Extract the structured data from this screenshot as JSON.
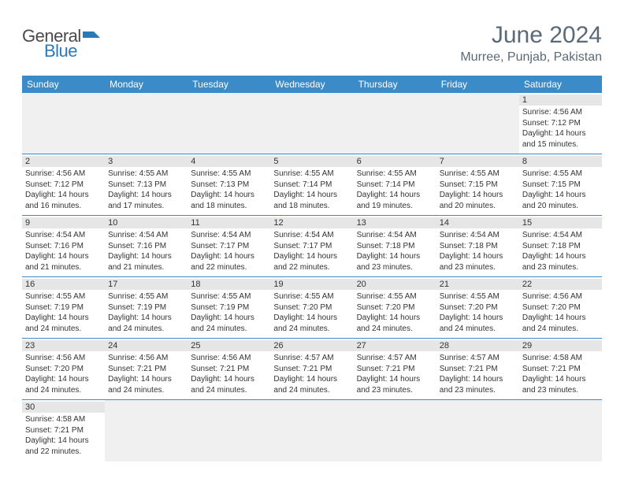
{
  "brand": {
    "text_general": "General",
    "text_blue": "Blue",
    "icon_color": "#2a7ab8"
  },
  "title": {
    "month": "June 2024",
    "location": "Murree, Punjab, Pakistan"
  },
  "colors": {
    "header_bg": "#3b8bc8",
    "header_text": "#ffffff",
    "daynum_bg": "#e6e6e6",
    "empty_bg": "#f0f0f0",
    "divider": "#3b8bc8",
    "title_text": "#5a6a78",
    "body_text": "#333333"
  },
  "weekdays": [
    "Sunday",
    "Monday",
    "Tuesday",
    "Wednesday",
    "Thursday",
    "Friday",
    "Saturday"
  ],
  "weeks": [
    [
      null,
      null,
      null,
      null,
      null,
      null,
      {
        "n": "1",
        "sr": "4:56 AM",
        "ss": "7:12 PM",
        "dl": "14 hours and 15 minutes."
      }
    ],
    [
      {
        "n": "2",
        "sr": "4:56 AM",
        "ss": "7:12 PM",
        "dl": "14 hours and 16 minutes."
      },
      {
        "n": "3",
        "sr": "4:55 AM",
        "ss": "7:13 PM",
        "dl": "14 hours and 17 minutes."
      },
      {
        "n": "4",
        "sr": "4:55 AM",
        "ss": "7:13 PM",
        "dl": "14 hours and 18 minutes."
      },
      {
        "n": "5",
        "sr": "4:55 AM",
        "ss": "7:14 PM",
        "dl": "14 hours and 18 minutes."
      },
      {
        "n": "6",
        "sr": "4:55 AM",
        "ss": "7:14 PM",
        "dl": "14 hours and 19 minutes."
      },
      {
        "n": "7",
        "sr": "4:55 AM",
        "ss": "7:15 PM",
        "dl": "14 hours and 20 minutes."
      },
      {
        "n": "8",
        "sr": "4:55 AM",
        "ss": "7:15 PM",
        "dl": "14 hours and 20 minutes."
      }
    ],
    [
      {
        "n": "9",
        "sr": "4:54 AM",
        "ss": "7:16 PM",
        "dl": "14 hours and 21 minutes."
      },
      {
        "n": "10",
        "sr": "4:54 AM",
        "ss": "7:16 PM",
        "dl": "14 hours and 21 minutes."
      },
      {
        "n": "11",
        "sr": "4:54 AM",
        "ss": "7:17 PM",
        "dl": "14 hours and 22 minutes."
      },
      {
        "n": "12",
        "sr": "4:54 AM",
        "ss": "7:17 PM",
        "dl": "14 hours and 22 minutes."
      },
      {
        "n": "13",
        "sr": "4:54 AM",
        "ss": "7:18 PM",
        "dl": "14 hours and 23 minutes."
      },
      {
        "n": "14",
        "sr": "4:54 AM",
        "ss": "7:18 PM",
        "dl": "14 hours and 23 minutes."
      },
      {
        "n": "15",
        "sr": "4:54 AM",
        "ss": "7:18 PM",
        "dl": "14 hours and 23 minutes."
      }
    ],
    [
      {
        "n": "16",
        "sr": "4:55 AM",
        "ss": "7:19 PM",
        "dl": "14 hours and 24 minutes."
      },
      {
        "n": "17",
        "sr": "4:55 AM",
        "ss": "7:19 PM",
        "dl": "14 hours and 24 minutes."
      },
      {
        "n": "18",
        "sr": "4:55 AM",
        "ss": "7:19 PM",
        "dl": "14 hours and 24 minutes."
      },
      {
        "n": "19",
        "sr": "4:55 AM",
        "ss": "7:20 PM",
        "dl": "14 hours and 24 minutes."
      },
      {
        "n": "20",
        "sr": "4:55 AM",
        "ss": "7:20 PM",
        "dl": "14 hours and 24 minutes."
      },
      {
        "n": "21",
        "sr": "4:55 AM",
        "ss": "7:20 PM",
        "dl": "14 hours and 24 minutes."
      },
      {
        "n": "22",
        "sr": "4:56 AM",
        "ss": "7:20 PM",
        "dl": "14 hours and 24 minutes."
      }
    ],
    [
      {
        "n": "23",
        "sr": "4:56 AM",
        "ss": "7:20 PM",
        "dl": "14 hours and 24 minutes."
      },
      {
        "n": "24",
        "sr": "4:56 AM",
        "ss": "7:21 PM",
        "dl": "14 hours and 24 minutes."
      },
      {
        "n": "25",
        "sr": "4:56 AM",
        "ss": "7:21 PM",
        "dl": "14 hours and 24 minutes."
      },
      {
        "n": "26",
        "sr": "4:57 AM",
        "ss": "7:21 PM",
        "dl": "14 hours and 24 minutes."
      },
      {
        "n": "27",
        "sr": "4:57 AM",
        "ss": "7:21 PM",
        "dl": "14 hours and 23 minutes."
      },
      {
        "n": "28",
        "sr": "4:57 AM",
        "ss": "7:21 PM",
        "dl": "14 hours and 23 minutes."
      },
      {
        "n": "29",
        "sr": "4:58 AM",
        "ss": "7:21 PM",
        "dl": "14 hours and 23 minutes."
      }
    ],
    [
      {
        "n": "30",
        "sr": "4:58 AM",
        "ss": "7:21 PM",
        "dl": "14 hours and 22 minutes."
      },
      null,
      null,
      null,
      null,
      null,
      null
    ]
  ],
  "labels": {
    "sunrise": "Sunrise:",
    "sunset": "Sunset:",
    "daylight": "Daylight:"
  }
}
